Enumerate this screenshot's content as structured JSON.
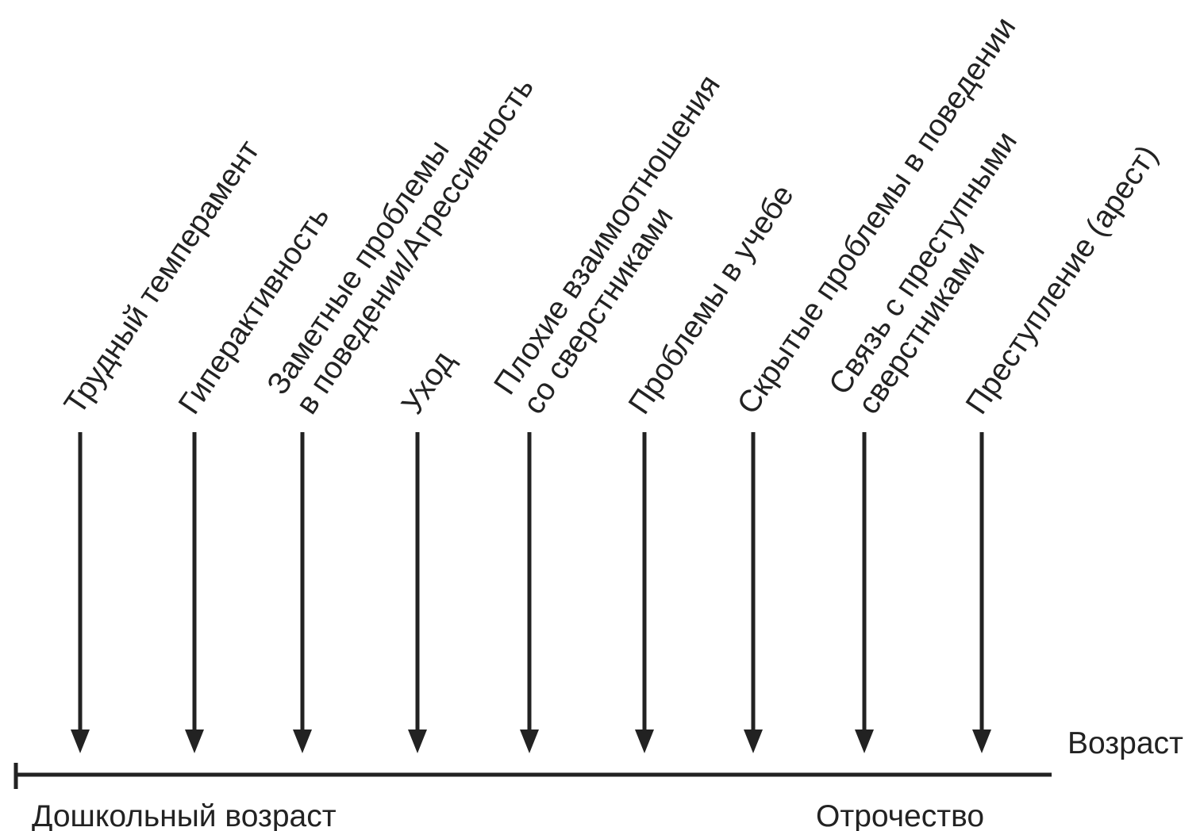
{
  "diagram": {
    "events": [
      {
        "lines": [
          "Трудный темперамент"
        ]
      },
      {
        "lines": [
          "Гиперактивность"
        ]
      },
      {
        "lines": [
          "Заметные проблемы",
          "в поведении/Агрессивность"
        ]
      },
      {
        "lines": [
          "Уход"
        ]
      },
      {
        "lines": [
          "Плохие взаимоотношения",
          "со сверстниками"
        ]
      },
      {
        "lines": [
          "Проблемы в учебе"
        ]
      },
      {
        "lines": [
          "Скрытые проблемы в поведении"
        ]
      },
      {
        "lines": [
          "Связь с преступными",
          "сверстниками"
        ]
      },
      {
        "lines": [
          "Преступление (арест)"
        ]
      }
    ],
    "axis": {
      "label": "Возраст",
      "start_label": "Дошкольный возраст",
      "end_label": "Отрочество"
    },
    "colors": {
      "ink": "#222222",
      "background": "#ffffff"
    }
  }
}
